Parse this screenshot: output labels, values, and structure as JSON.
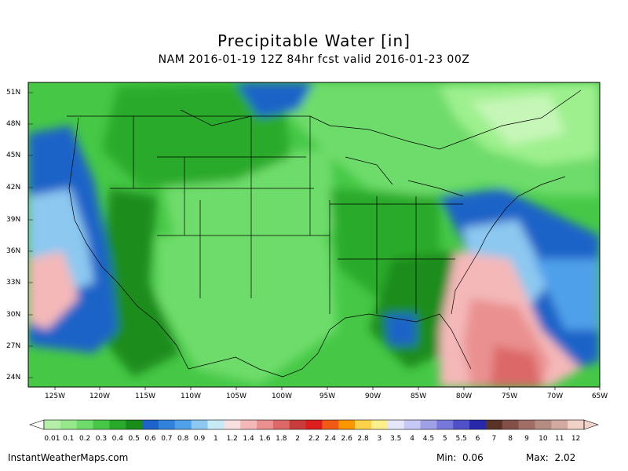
{
  "title": "Precipitable Water [in]",
  "subtitle": "NAM 2016-01-19 12Z 84hr fcst valid 2016-01-23 00Z",
  "lat_labels": [
    "51N",
    "48N",
    "45N",
    "42N",
    "39N",
    "36N",
    "33N",
    "30N",
    "27N",
    "24N"
  ],
  "lon_labels": [
    "125W",
    "120W",
    "115W",
    "110W",
    "105W",
    "100W",
    "95W",
    "90W",
    "85W",
    "80W",
    "75W",
    "70W",
    "65W"
  ],
  "colorbar": {
    "labels": [
      "0.01",
      "0.1",
      "0.2",
      "0.3",
      "0.4",
      "0.5",
      "0.6",
      "0.7",
      "0.8",
      "0.9",
      "1",
      "1.2",
      "1.4",
      "1.6",
      "1.8",
      "2",
      "2.2",
      "2.4",
      "2.6",
      "2.8",
      "3",
      "3.5",
      "4",
      "4.5",
      "5",
      "5.5",
      "6",
      "7",
      "8",
      "9",
      "10",
      "11",
      "12"
    ],
    "colors": [
      "#b4f0a8",
      "#96e88a",
      "#6edc6a",
      "#46c846",
      "#2aaa2a",
      "#1a8c1a",
      "#1e64c8",
      "#3282dc",
      "#50a0ea",
      "#8cc8f0",
      "#c8eaf6",
      "#f8e0e0",
      "#f4b8b8",
      "#ea9090",
      "#dc6868",
      "#c83c3c",
      "#dc1e1e",
      "#f05a14",
      "#fa9600",
      "#fcd24a",
      "#fcf08c",
      "#e6e6fa",
      "#c8c8f4",
      "#a0a0e6",
      "#7878dc",
      "#5050c8",
      "#2828aa",
      "#5a3228",
      "#825046",
      "#a06e64",
      "#b48c82",
      "#d2aaa0",
      "#f0d2c8"
    ]
  },
  "footer": {
    "source": "InstantWeatherMaps.com",
    "min_label": "Min:",
    "min_value": "0.06",
    "max_label": "Max:",
    "max_value": "2.02"
  },
  "colors": {
    "pw_low_light": "#9ef08e",
    "pw_low": "#46c846",
    "pw_mid_green": "#2aaa2a",
    "pw_dark_green": "#1a8c1a",
    "pw_blue": "#1e64c8",
    "pw_light_blue": "#8cc8f0",
    "pw_pink": "#f4b8b8",
    "pw_red": "#dc6868"
  }
}
